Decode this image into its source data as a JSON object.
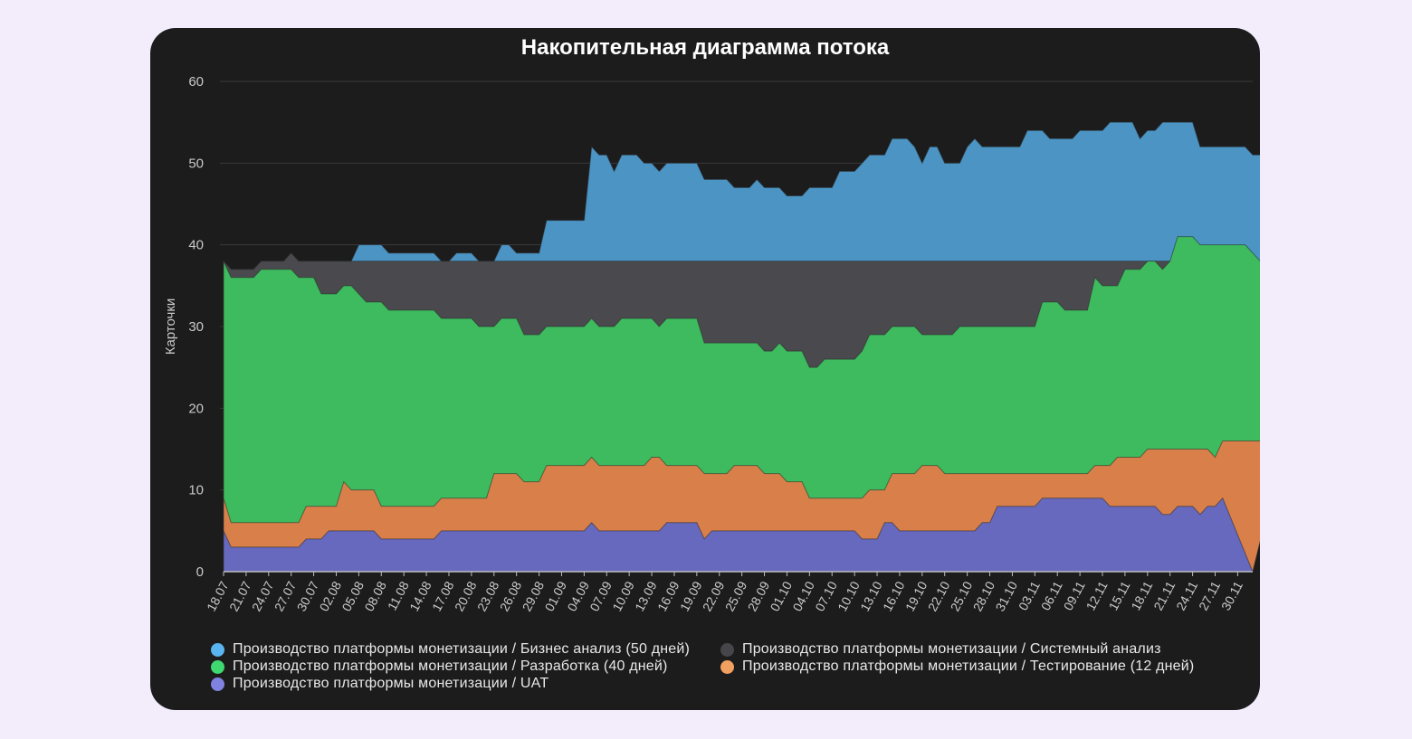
{
  "chart_data": {
    "type": "area",
    "stacked": true,
    "title": "Накопительная диаграмма потока",
    "ylabel": "Карточки",
    "xlabel": "",
    "ylim": [
      0,
      60
    ],
    "yticks": [
      0,
      10,
      20,
      30,
      40,
      50,
      60
    ],
    "grid": true,
    "legend_position": "bottom",
    "x": [
      "18.07",
      "19.07",
      "20.07",
      "21.07",
      "22.07",
      "23.07",
      "24.07",
      "25.07",
      "26.07",
      "27.07",
      "28.07",
      "29.07",
      "30.07",
      "31.07",
      "01.08",
      "02.08",
      "03.08",
      "04.08",
      "05.08",
      "06.08",
      "07.08",
      "08.08",
      "09.08",
      "10.08",
      "11.08",
      "12.08",
      "13.08",
      "14.08",
      "15.08",
      "16.08",
      "17.08",
      "18.08",
      "19.08",
      "20.08",
      "21.08",
      "22.08",
      "23.08",
      "24.08",
      "25.08",
      "26.08",
      "27.08",
      "28.08",
      "29.08",
      "30.08",
      "31.08",
      "01.09",
      "02.09",
      "03.09",
      "04.09",
      "05.09",
      "06.09",
      "07.09",
      "08.09",
      "09.09",
      "10.09",
      "11.09",
      "12.09",
      "13.09",
      "14.09",
      "15.09",
      "16.09",
      "17.09",
      "18.09",
      "19.09",
      "20.09",
      "21.09",
      "22.09",
      "23.09",
      "24.09",
      "25.09",
      "26.09",
      "27.09",
      "28.09",
      "29.09",
      "30.09",
      "01.10",
      "02.10",
      "03.10",
      "04.10",
      "05.10",
      "06.10",
      "07.10",
      "08.10",
      "09.10",
      "10.10",
      "11.10",
      "12.10",
      "13.10",
      "14.10",
      "15.10",
      "16.10",
      "17.10",
      "18.10",
      "19.10",
      "20.10",
      "21.10",
      "22.10",
      "23.10",
      "24.10",
      "25.10",
      "26.10",
      "27.10",
      "28.10",
      "29.10",
      "30.10",
      "31.10",
      "01.11",
      "02.11",
      "03.11",
      "04.11",
      "05.11",
      "06.11",
      "07.11",
      "08.11",
      "09.11",
      "10.11",
      "11.11",
      "12.11",
      "13.11",
      "14.11",
      "15.11",
      "16.11",
      "17.11",
      "18.11",
      "19.11",
      "20.11",
      "21.11",
      "22.11",
      "23.11",
      "24.11",
      "25.11",
      "26.11",
      "27.11",
      "28.11",
      "29.11",
      "30.11",
      "01.12",
      "02.12"
    ],
    "xtick_labels": [
      "18.07",
      "21.07",
      "24.07",
      "27.07",
      "30.07",
      "02.08",
      "05.08",
      "08.08",
      "11.08",
      "14.08",
      "17.08",
      "20.08",
      "23.08",
      "26.08",
      "29.08",
      "01.09",
      "04.09",
      "07.09",
      "10.09",
      "13.09",
      "16.09",
      "19.09",
      "22.09",
      "25.09",
      "28.09",
      "01.10",
      "04.10",
      "07.10",
      "10.10",
      "13.10",
      "16.10",
      "19.10",
      "22.10",
      "25.10",
      "28.10",
      "31.10",
      "03.11",
      "06.11",
      "09.11",
      "12.11",
      "15.11",
      "18.11",
      "21.11",
      "24.11",
      "27.11",
      "30.11"
    ],
    "cumulative_top": {
      "uat": [
        5,
        3,
        3,
        3,
        3,
        3,
        3,
        3,
        3,
        3,
        3,
        4,
        4,
        4,
        5,
        5,
        5,
        5,
        5,
        5,
        5,
        4,
        4,
        4,
        4,
        4,
        4,
        4,
        4,
        5,
        5,
        5,
        5,
        5,
        5,
        5,
        5,
        5,
        5,
        5,
        5,
        5,
        5,
        5,
        5,
        5,
        5,
        5,
        5,
        6,
        5,
        5,
        5,
        5,
        5,
        5,
        5,
        5,
        5,
        6,
        6,
        6,
        6,
        6,
        4,
        5,
        5,
        5,
        5,
        5,
        5,
        5,
        5,
        5,
        5,
        5,
        5,
        5,
        5,
        5,
        5,
        5,
        5,
        5,
        5,
        4,
        4,
        4,
        6,
        6,
        5,
        5,
        5,
        5,
        5,
        5,
        5,
        5,
        5,
        5,
        5,
        6,
        6,
        8,
        8,
        8,
        8,
        8,
        8,
        9,
        9,
        9,
        9,
        9,
        9,
        9,
        9,
        9,
        8,
        8,
        8,
        8,
        8,
        8,
        8,
        7,
        7,
        8,
        8,
        8,
        7,
        8,
        8,
        9
      ],
      "testing": [
        9,
        6,
        6,
        6,
        6,
        6,
        6,
        6,
        6,
        6,
        6,
        8,
        8,
        8,
        8,
        8,
        11,
        10,
        10,
        10,
        10,
        8,
        8,
        8,
        8,
        8,
        8,
        8,
        8,
        9,
        9,
        9,
        9,
        9,
        9,
        9,
        12,
        12,
        12,
        12,
        11,
        11,
        11,
        13,
        13,
        13,
        13,
        13,
        13,
        14,
        13,
        13,
        13,
        13,
        13,
        13,
        13,
        14,
        14,
        13,
        13,
        13,
        13,
        13,
        12,
        12,
        12,
        12,
        13,
        13,
        13,
        13,
        12,
        12,
        12,
        11,
        11,
        11,
        9,
        9,
        9,
        9,
        9,
        9,
        9,
        9,
        10,
        10,
        10,
        12,
        12,
        12,
        12,
        13,
        13,
        13,
        12,
        12,
        12,
        12,
        12,
        12,
        12,
        12,
        12,
        12,
        12,
        12,
        12,
        12,
        12,
        12,
        12,
        12,
        12,
        12,
        13,
        13,
        13,
        14,
        14,
        14,
        14,
        15,
        15,
        15,
        15,
        15,
        15,
        15,
        15,
        15,
        14,
        16,
        16,
        16,
        16,
        16,
        16,
        16,
        15,
        15
      ],
      "development": [
        38,
        36,
        36,
        36,
        36,
        37,
        37,
        37,
        37,
        37,
        36,
        36,
        36,
        34,
        34,
        34,
        35,
        35,
        34,
        33,
        33,
        33,
        32,
        32,
        32,
        32,
        32,
        32,
        32,
        31,
        31,
        31,
        31,
        31,
        30,
        30,
        30,
        31,
        31,
        31,
        29,
        29,
        29,
        30,
        30,
        30,
        30,
        30,
        30,
        31,
        30,
        30,
        30,
        31,
        31,
        31,
        31,
        31,
        30,
        31,
        31,
        31,
        31,
        31,
        28,
        28,
        28,
        28,
        28,
        28,
        28,
        28,
        27,
        27,
        28,
        27,
        27,
        27,
        25,
        25,
        26,
        26,
        26,
        26,
        26,
        27,
        29,
        29,
        29,
        30,
        30,
        30,
        30,
        29,
        29,
        29,
        29,
        29,
        30,
        30,
        30,
        30,
        30,
        30,
        30,
        30,
        30,
        30,
        30,
        33,
        33,
        33,
        32,
        32,
        32,
        32,
        36,
        35,
        35,
        35,
        37,
        37,
        37,
        38,
        38,
        37,
        38,
        41,
        41,
        41,
        40,
        40,
        40,
        40,
        40,
        40,
        40,
        39,
        38,
        38,
        37,
        37
      ],
      "system_analysis": [
        38,
        37,
        37,
        37,
        37,
        38,
        38,
        38,
        38,
        39,
        38,
        38,
        38,
        38,
        38,
        38,
        38,
        38,
        38,
        38,
        38,
        38,
        38,
        38,
        38,
        38,
        38,
        38,
        38,
        38,
        38,
        38,
        38,
        38,
        38,
        38,
        38,
        38,
        38,
        38,
        38,
        38,
        38,
        38,
        38,
        38,
        38,
        38,
        38,
        38,
        38,
        38,
        38,
        38,
        38,
        38,
        38,
        38,
        38,
        38,
        38,
        38,
        38,
        38,
        38,
        38,
        38,
        38,
        38,
        38,
        38,
        38,
        38,
        38,
        38,
        38,
        38,
        38,
        38,
        38,
        38,
        38,
        38,
        38,
        38,
        38,
        38,
        38,
        38,
        38,
        38,
        38,
        38,
        38,
        38,
        38,
        38,
        38,
        38,
        38,
        38,
        38,
        38,
        38,
        38,
        38,
        38,
        38,
        38,
        38,
        38,
        38,
        38,
        38,
        38,
        38,
        38,
        38,
        38,
        38,
        38,
        38,
        38,
        38,
        38,
        38,
        38,
        38,
        38,
        38,
        38,
        38,
        38,
        38,
        38,
        38,
        38,
        38,
        38,
        38,
        38,
        38
      ],
      "business_analysis": [
        38,
        37,
        37,
        37,
        37,
        38,
        38,
        38,
        38,
        39,
        38,
        38,
        38,
        38,
        38,
        38,
        38,
        38,
        40,
        40,
        40,
        40,
        39,
        39,
        39,
        39,
        39,
        39,
        39,
        38,
        38,
        39,
        39,
        39,
        38,
        38,
        38,
        40,
        40,
        39,
        39,
        39,
        39,
        43,
        43,
        43,
        43,
        43,
        43,
        52,
        51,
        51,
        49,
        51,
        51,
        51,
        50,
        50,
        49,
        50,
        50,
        50,
        50,
        50,
        48,
        48,
        48,
        48,
        47,
        47,
        47,
        48,
        47,
        47,
        47,
        46,
        46,
        46,
        47,
        47,
        47,
        47,
        49,
        49,
        49,
        50,
        51,
        51,
        51,
        53,
        53,
        53,
        52,
        50,
        52,
        52,
        50,
        50,
        50,
        52,
        53,
        52,
        52,
        52,
        52,
        52,
        52,
        54,
        54,
        54,
        53,
        53,
        53,
        53,
        54,
        54,
        54,
        54,
        55,
        55,
        55,
        55,
        53,
        54,
        54,
        55,
        55,
        55,
        55,
        55,
        52,
        52,
        52,
        52,
        52,
        52,
        52,
        51,
        51,
        51,
        50,
        50
      ]
    },
    "series": [
      {
        "key": "business_analysis",
        "name": "Производство платформы монетизации / Бизнес анализ (50 дней)",
        "color": "#4b94c4",
        "legend_color": "#59b4f0"
      },
      {
        "key": "system_analysis",
        "name": "Производство платформы монетизации / Системный анализ",
        "color": "#4a4a4e",
        "legend_color": "#46464a"
      },
      {
        "key": "development",
        "name": "Производство платформы монетизации / Разработка (40 дней)",
        "color": "#3dbb5e",
        "legend_color": "#3fd871"
      },
      {
        "key": "testing",
        "name": "Производство платформы монетизации / Тестирование (12 дней)",
        "color": "#d9804a",
        "legend_color": "#f2a060"
      },
      {
        "key": "uat",
        "name": "Производство платформы монетизации / UAT",
        "color": "#6669bd",
        "legend_color": "#7f82e0"
      }
    ]
  }
}
